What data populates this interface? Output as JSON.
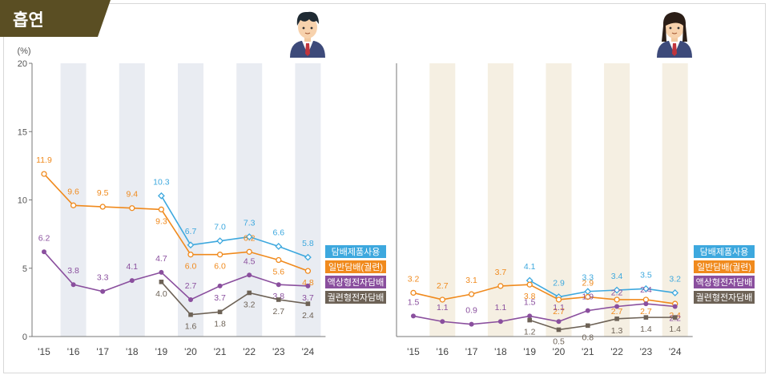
{
  "title": "흡연",
  "colors": {
    "tab": "#5a4e23",
    "tobacco_products": "#3da8de",
    "cigarettes": "#f08a1d",
    "liquid_ecig": "#8a4f9e",
    "cigarette_type_ecig": "#6d6256",
    "band_boys": "#e9ecf2",
    "band_girls": "#f5efe2"
  },
  "chart_data": [
    {
      "type": "line",
      "panel": "boys",
      "icon": "boy-student-icon",
      "ylabel": "(%)",
      "ylim": [
        0,
        20
      ],
      "yticks": [
        "0",
        "5",
        "10",
        "15",
        "20"
      ],
      "categories": [
        "'15",
        "'16",
        "'17",
        "'18",
        "'19",
        "'20",
        "'21",
        "'22",
        "'23",
        "'24"
      ],
      "grid": false,
      "legend_position": "right",
      "series": [
        {
          "name": "담배제품사용",
          "color_key": "tobacco_products",
          "values": [
            null,
            null,
            null,
            null,
            10.3,
            6.7,
            7.0,
            7.3,
            6.6,
            5.8
          ],
          "labels": [
            "",
            "",
            "",
            "",
            "10.3",
            "6.7",
            "7.0",
            "7.3",
            "6.6",
            "5.8"
          ]
        },
        {
          "name": "일반담배(궐련)",
          "color_key": "cigarettes",
          "values": [
            11.9,
            9.6,
            9.5,
            9.4,
            9.3,
            6.0,
            6.0,
            6.2,
            5.6,
            4.8
          ],
          "labels": [
            "11.9",
            "9.6",
            "9.5",
            "9.4",
            "9.3",
            "6.0",
            "6.0",
            "6.2",
            "5.6",
            "4.8"
          ]
        },
        {
          "name": "액상형전자담배",
          "color_key": "liquid_ecig",
          "values": [
            6.2,
            3.8,
            3.3,
            4.1,
            4.7,
            2.7,
            3.7,
            4.5,
            3.8,
            3.7
          ],
          "labels": [
            "6.2",
            "3.8",
            "3.3",
            "4.1",
            "4.7",
            "2.7",
            "3.7",
            "4.5",
            "3.8",
            "3.7"
          ]
        },
        {
          "name": "궐련형전자담배",
          "color_key": "cigarette_type_ecig",
          "values": [
            null,
            null,
            null,
            null,
            4.0,
            1.6,
            1.8,
            3.2,
            2.7,
            2.4
          ],
          "labels": [
            "",
            "",
            "",
            "",
            "4.0",
            "1.6",
            "1.8",
            "3.2",
            "2.7",
            "2.4"
          ]
        }
      ]
    },
    {
      "type": "line",
      "panel": "girls",
      "icon": "girl-student-icon",
      "ylim": [
        0,
        20
      ],
      "categories": [
        "'15",
        "'16",
        "'17",
        "'18",
        "'19",
        "'20",
        "'21",
        "'22",
        "'23",
        "'24"
      ],
      "grid": false,
      "legend_position": "right",
      "series": [
        {
          "name": "담배제품사용",
          "color_key": "tobacco_products",
          "values": [
            null,
            null,
            null,
            null,
            4.1,
            2.9,
            3.3,
            3.4,
            3.5,
            3.2
          ],
          "labels": [
            "",
            "",
            "",
            "",
            "4.1",
            "2.9",
            "3.3",
            "3.4",
            "3.5",
            "3.2"
          ]
        },
        {
          "name": "일반담배(궐련)",
          "color_key": "cigarettes",
          "values": [
            3.2,
            2.7,
            3.1,
            3.7,
            3.8,
            2.7,
            2.9,
            2.7,
            2.7,
            2.4
          ],
          "labels": [
            "3.2",
            "2.7",
            "3.1",
            "3.7",
            "3.8",
            "2.7",
            "2.9",
            "2.7",
            "2.7",
            "2.4"
          ]
        },
        {
          "name": "액상형전자담배",
          "color_key": "liquid_ecig",
          "values": [
            1.5,
            1.1,
            0.9,
            1.1,
            1.5,
            1.1,
            1.9,
            2.2,
            2.4,
            2.2
          ],
          "labels": [
            "1.5",
            "1.1",
            "0.9",
            "1.1",
            "1.5",
            "1.1",
            "1.9",
            "2.2",
            "2.4",
            "2.2"
          ]
        },
        {
          "name": "궐련형전자담배",
          "color_key": "cigarette_type_ecig",
          "values": [
            null,
            null,
            null,
            null,
            1.2,
            0.5,
            0.8,
            1.3,
            1.4,
            1.4
          ],
          "labels": [
            "",
            "",
            "",
            "",
            "1.2",
            "0.5",
            "0.8",
            "1.3",
            "1.4",
            "1.4"
          ]
        }
      ]
    }
  ]
}
